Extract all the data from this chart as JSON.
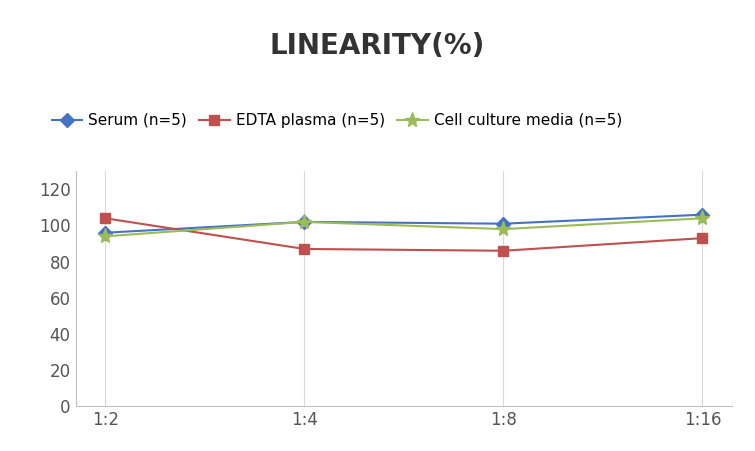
{
  "title": "LINEARITY(%)",
  "x_labels": [
    "1:2",
    "1:4",
    "1:8",
    "1:16"
  ],
  "x_positions": [
    0,
    1,
    2,
    3
  ],
  "series": [
    {
      "label": "Serum (n=5)",
      "color": "#4472C4",
      "marker": "D",
      "values": [
        96,
        102,
        101,
        106
      ]
    },
    {
      "label": "EDTA plasma (n=5)",
      "color": "#C0504D",
      "marker": "s",
      "values": [
        104,
        87,
        86,
        93
      ]
    },
    {
      "label": "Cell culture media (n=5)",
      "color": "#9BBB59",
      "marker": "*",
      "values": [
        94,
        102,
        98,
        104
      ]
    }
  ],
  "ylim": [
    0,
    130
  ],
  "yticks": [
    0,
    20,
    40,
    60,
    80,
    100,
    120
  ],
  "title_fontsize": 20,
  "legend_fontsize": 11,
  "tick_fontsize": 12,
  "background_color": "#ffffff",
  "grid_color": "#d9d9d9",
  "spine_color": "#c0c0c0"
}
